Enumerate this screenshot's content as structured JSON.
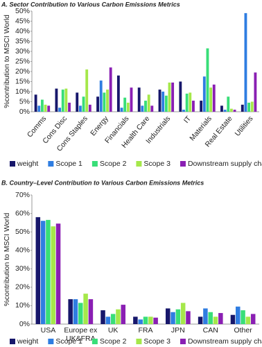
{
  "chart_data": [
    {
      "type": "bar",
      "title": "A. Sector Contribution to Various Carbon Emissions Metrics",
      "y_label": "%contribution to MSCI World",
      "categories": [
        "Comms",
        "Cons Disc",
        "Cons Staples",
        "Energy",
        "Financials",
        "Health Care",
        "Industrials",
        "IT",
        "Materials",
        "Real Estate",
        "Utilities"
      ],
      "series": [
        {
          "name": "weight",
          "color": "#17176b",
          "values": [
            8.5,
            11.5,
            9.5,
            7.5,
            18,
            12,
            11,
            15,
            5.5,
            3,
            3.5
          ]
        },
        {
          "name": "Scope 1",
          "color": "#2f7de1",
          "values": [
            3,
            2,
            3,
            15.5,
            2,
            3,
            10,
            1,
            17.5,
            1,
            49
          ]
        },
        {
          "name": "Scope 2",
          "color": "#38de78",
          "values": [
            6,
            11,
            7.5,
            9.5,
            7,
            5.5,
            8,
            9,
            31.5,
            7.5,
            4.5
          ]
        },
        {
          "name": "Scope 3",
          "color": "#a5e84a",
          "values": [
            3.5,
            11.5,
            21,
            11,
            4.5,
            8.5,
            14.5,
            9.5,
            12,
            1.5,
            5
          ]
        },
        {
          "name": "Downstream supply chain",
          "color": "#8a1fb3",
          "values": [
            3,
            4.5,
            3.5,
            22,
            12,
            3,
            14.5,
            5.5,
            13.5,
            1,
            19.5
          ]
        }
      ],
      "ylim": [
        0,
        50
      ],
      "yticks": [
        {
          "value": 0,
          "label": "0%"
        },
        {
          "value": 5,
          "label": "5%"
        },
        {
          "value": 10,
          "label": "10%"
        },
        {
          "value": 15,
          "label": "15%"
        },
        {
          "value": 20,
          "label": "20%"
        },
        {
          "value": 25,
          "label": "25%"
        },
        {
          "value": 30,
          "label": "30%"
        },
        {
          "value": 35,
          "label": "35%"
        },
        {
          "value": 40,
          "label": "40%"
        },
        {
          "value": 45,
          "label": "45%"
        },
        {
          "value": 50,
          "label": "50%"
        }
      ],
      "grid": false,
      "legend": "bottom"
    },
    {
      "type": "bar",
      "title": "B. Country–Level Contribution to Various Carbon Emissions Metrics",
      "y_label": "%contribution to MSCI World",
      "categories": [
        "USA",
        "Europe ex UK&FRA",
        "UK",
        "FRA",
        "JPN",
        "CAN",
        "Other"
      ],
      "series": [
        {
          "name": "weight",
          "color": "#17176b",
          "values": [
            58,
            13.5,
            7.5,
            4,
            8.5,
            4,
            5
          ]
        },
        {
          "name": "Scope 1",
          "color": "#2f7de1",
          "values": [
            56,
            13.5,
            4,
            2.5,
            6.5,
            8.5,
            9.5
          ]
        },
        {
          "name": "Scope 2",
          "color": "#38de78",
          "values": [
            56.5,
            11.5,
            5.5,
            4,
            8,
            6.5,
            7.5
          ]
        },
        {
          "name": "Scope 3",
          "color": "#a5e84a",
          "values": [
            53,
            16.5,
            8,
            4,
            11.5,
            4,
            4
          ]
        },
        {
          "name": "Downstream supply chain",
          "color": "#8a1fb3",
          "values": [
            54.5,
            13.5,
            10.5,
            3.5,
            7,
            6,
            5.5
          ]
        }
      ],
      "ylim": [
        0,
        70
      ],
      "yticks": [
        {
          "value": 0,
          "label": "0%"
        },
        {
          "value": 10,
          "label": "10%"
        },
        {
          "value": 20,
          "label": "20%"
        },
        {
          "value": 30,
          "label": "30%"
        },
        {
          "value": 40,
          "label": "40%"
        },
        {
          "value": 50,
          "label": "50%"
        },
        {
          "value": 60,
          "label": "60%"
        },
        {
          "value": 70,
          "label": "70%"
        }
      ],
      "grid": false,
      "legend": "bottom"
    }
  ]
}
